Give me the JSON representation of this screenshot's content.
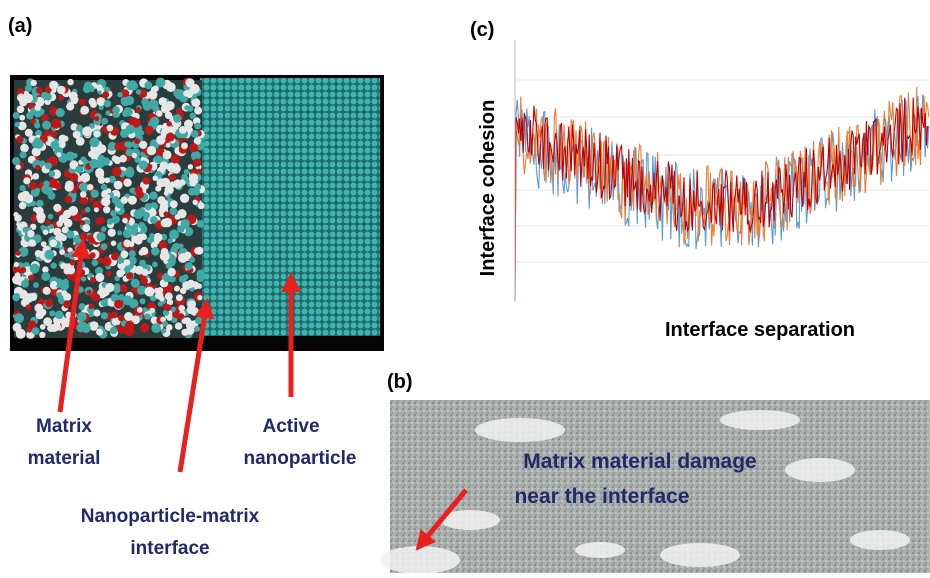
{
  "panel_a": {
    "label": "(a)",
    "annotations": {
      "matrix": [
        "Matrix",
        "material"
      ],
      "nanoparticle": [
        "Active",
        "nanoparticle"
      ],
      "interface": [
        "Nanoparticle-matrix",
        "interface"
      ]
    }
  },
  "panel_b": {
    "label": "(b)",
    "annotation": [
      "Matrix material damage",
      "near the interface"
    ]
  },
  "panel_c": {
    "label": "(c)",
    "y_label": "Interface cohesion",
    "x_label": "Interface separation",
    "line_colors": [
      "#5b9bd5",
      "#ed7d31",
      "#c00000"
    ]
  }
}
